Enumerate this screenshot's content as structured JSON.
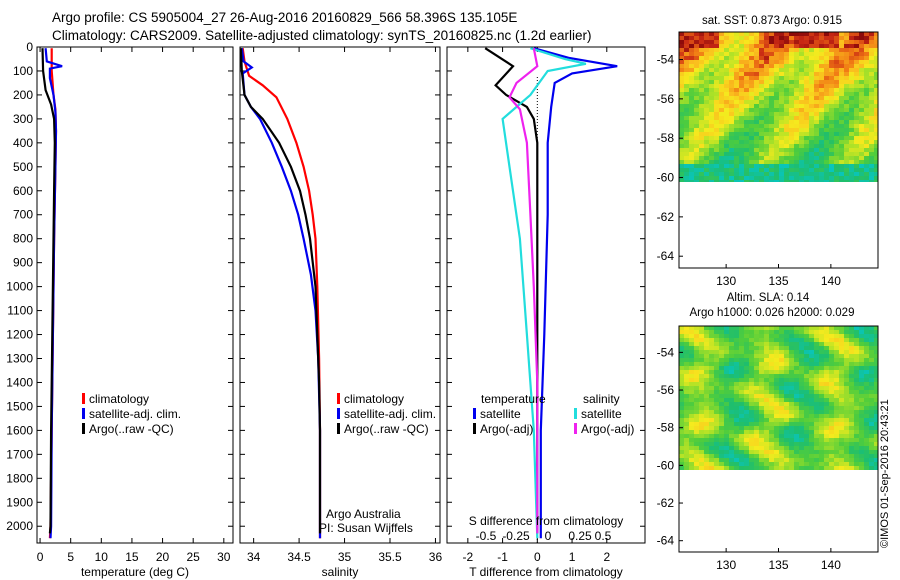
{
  "header": {
    "line1": "Argo profile: CS 5905004_27 26-Aug-2016 20160829_566 58.396S 135.105E",
    "line2": "Climatology: CARS2009. Satellite-adjusted climatology: synTS_20160825.nc (1.2d earlier)"
  },
  "colors": {
    "climatology": "#ff0000",
    "satellite": "#0000ee",
    "argo": "#000000",
    "sat_salinity": "#22dddd",
    "argo_salinity_adj": "#ee22ee"
  },
  "chart_data": [
    {
      "type": "line",
      "name": "temperature-profile",
      "xlabel": "temperature (deg C)",
      "ylabel": "",
      "xlim": [
        -0.5,
        31.5
      ],
      "ylim": [
        2070,
        0
      ],
      "xticks": [
        0,
        5,
        10,
        15,
        20,
        25,
        30
      ],
      "yticks": [
        0,
        100,
        200,
        300,
        400,
        500,
        600,
        700,
        800,
        900,
        1000,
        1100,
        1200,
        1300,
        1400,
        1500,
        1600,
        1700,
        1800,
        1900,
        2000
      ],
      "legend": [
        "climatology",
        "satellite-adj. clim.",
        "Argo(..raw -QC)"
      ],
      "series": [
        {
          "name": "climatology",
          "color": "#ff0000",
          "points": [
            [
              1.9,
              5
            ],
            [
              1.9,
              100
            ],
            [
              2.2,
              200
            ],
            [
              2.5,
              260
            ],
            [
              2.6,
              350
            ],
            [
              2.5,
              500
            ],
            [
              2.3,
              800
            ],
            [
              2.1,
              1200
            ],
            [
              1.9,
              1600
            ],
            [
              1.7,
              2000
            ],
            [
              1.6,
              2050
            ]
          ]
        },
        {
          "name": "satellite-adj. clim.",
          "color": "#0000ee",
          "points": [
            [
              0.9,
              5
            ],
            [
              1.1,
              60
            ],
            [
              3.6,
              80
            ],
            [
              1.6,
              90
            ],
            [
              1.6,
              130
            ],
            [
              2.2,
              200
            ],
            [
              2.5,
              270
            ],
            [
              2.6,
              350
            ],
            [
              2.5,
              500
            ],
            [
              2.3,
              800
            ],
            [
              2.1,
              1200
            ],
            [
              1.9,
              1600
            ],
            [
              1.8,
              2000
            ],
            [
              1.7,
              2050
            ]
          ]
        },
        {
          "name": "Argo(..raw -QC)",
          "color": "#000000",
          "points": [
            [
              0.4,
              5
            ],
            [
              0.5,
              100
            ],
            [
              0.9,
              180
            ],
            [
              1.8,
              240
            ],
            [
              2.3,
              300
            ],
            [
              2.4,
              400
            ],
            [
              2.3,
              600
            ],
            [
              2.2,
              800
            ],
            [
              2.0,
              1200
            ],
            [
              1.8,
              1600
            ],
            [
              1.7,
              2000
            ],
            [
              1.6,
              2030
            ]
          ]
        }
      ]
    },
    {
      "type": "line",
      "name": "salinity-profile",
      "xlabel": "salinity",
      "ylabel": "",
      "xlim": [
        33.85,
        36.05
      ],
      "ylim": [
        2070,
        0
      ],
      "xticks": [
        34,
        34.5,
        35,
        35.5,
        36
      ],
      "legend": [
        "climatology",
        "satellite-adj. clim.",
        "Argo(..raw -QC)"
      ],
      "annotations": [
        "Argo Australia",
        "PI: Susan Wijffels"
      ],
      "series": [
        {
          "name": "climatology",
          "color": "#ff0000",
          "points": [
            [
              33.88,
              5
            ],
            [
              33.9,
              60
            ],
            [
              33.95,
              120
            ],
            [
              34.1,
              160
            ],
            [
              34.25,
              210
            ],
            [
              34.37,
              300
            ],
            [
              34.47,
              400
            ],
            [
              34.55,
              500
            ],
            [
              34.61,
              600
            ],
            [
              34.65,
              700
            ],
            [
              34.68,
              800
            ],
            [
              34.7,
              1000
            ],
            [
              34.72,
              1300
            ],
            [
              34.73,
              1600
            ],
            [
              34.73,
              2050
            ]
          ]
        },
        {
          "name": "satellite-adj. clim.",
          "color": "#0000ee",
          "points": [
            [
              33.87,
              5
            ],
            [
              33.89,
              60
            ],
            [
              33.98,
              85
            ],
            [
              33.88,
              110
            ],
            [
              33.9,
              200
            ],
            [
              33.97,
              250
            ],
            [
              34.07,
              300
            ],
            [
              34.2,
              400
            ],
            [
              34.31,
              500
            ],
            [
              34.41,
              600
            ],
            [
              34.49,
              700
            ],
            [
              34.55,
              800
            ],
            [
              34.63,
              950
            ],
            [
              34.68,
              1100
            ],
            [
              34.71,
              1300
            ],
            [
              34.73,
              1600
            ],
            [
              34.73,
              2050
            ]
          ]
        },
        {
          "name": "Argo(..raw -QC)",
          "color": "#000000",
          "points": [
            [
              33.86,
              5
            ],
            [
              33.87,
              100
            ],
            [
              33.9,
              200
            ],
            [
              33.97,
              250
            ],
            [
              34.1,
              300
            ],
            [
              34.28,
              400
            ],
            [
              34.41,
              500
            ],
            [
              34.51,
              600
            ],
            [
              34.57,
              700
            ],
            [
              34.62,
              800
            ],
            [
              34.68,
              1000
            ],
            [
              34.7,
              1200
            ],
            [
              34.72,
              1400
            ],
            [
              34.73,
              1600
            ],
            [
              34.73,
              2030
            ]
          ]
        }
      ]
    },
    {
      "type": "line",
      "name": "difference-profile",
      "xlabel": "T difference from climatology",
      "top_label": "S difference from climatology",
      "xlim": [
        -2.6,
        3.1
      ],
      "ylim": [
        2070,
        0
      ],
      "xticks": [
        -2,
        -1,
        0,
        1,
        2
      ],
      "top_ticks": [
        "-0.5",
        "-0.25",
        "0",
        "0.25",
        "0.5"
      ],
      "legend_headers": [
        "temperature",
        "salinity"
      ],
      "legend": [
        "satellite",
        "Argo(-adj)",
        "satellite",
        "Argo(-adj)"
      ],
      "series": [
        {
          "name": "temperature satellite",
          "color": "#0000ee",
          "points": [
            [
              -0.1,
              5
            ],
            [
              0.9,
              45
            ],
            [
              2.3,
              80
            ],
            [
              1.0,
              110
            ],
            [
              0.5,
              150
            ],
            [
              0.4,
              250
            ],
            [
              0.3,
              400
            ],
            [
              0.3,
              700
            ],
            [
              0.2,
              1200
            ],
            [
              0.1,
              1600
            ],
            [
              0.1,
              2050
            ]
          ]
        },
        {
          "name": "temperature Argo(-adj)",
          "color": "#000000",
          "points": [
            [
              -1.5,
              5
            ],
            [
              -0.7,
              80
            ],
            [
              -1.2,
              160
            ],
            [
              -0.9,
              200
            ],
            [
              -0.3,
              250
            ],
            [
              -0.1,
              300
            ],
            [
              0,
              400
            ],
            [
              0,
              800
            ],
            [
              0,
              1200
            ],
            [
              0,
              1600
            ],
            [
              0,
              2030
            ]
          ]
        },
        {
          "name": "salinity satellite",
          "color": "#22dddd",
          "points": [
            [
              -0.2,
              5
            ],
            [
              0.8,
              50
            ],
            [
              1.4,
              70
            ],
            [
              0.3,
              100
            ],
            [
              -0.2,
              200
            ],
            [
              -1.0,
              300
            ],
            [
              -0.8,
              500
            ],
            [
              -0.5,
              800
            ],
            [
              -0.3,
              1200
            ],
            [
              -0.1,
              1600
            ],
            [
              0,
              2050
            ]
          ]
        },
        {
          "name": "salinity Argo(-adj)",
          "color": "#ee22ee",
          "points": [
            [
              -0.1,
              5
            ],
            [
              0,
              80
            ],
            [
              -0.6,
              150
            ],
            [
              -0.8,
              210
            ],
            [
              -0.5,
              260
            ],
            [
              -0.3,
              400
            ],
            [
              -0.2,
              700
            ],
            [
              -0.1,
              1000
            ],
            [
              0,
              1400
            ],
            [
              0,
              2030
            ]
          ]
        }
      ]
    },
    {
      "type": "heatmap",
      "name": "sst-map",
      "title": "sat. SST: 0.873 Argo: 0.915",
      "xticks": [
        130,
        135,
        140
      ],
      "yticks": [
        -54,
        -56,
        -58,
        -60,
        -62,
        -64
      ],
      "xlim": [
        125.5,
        144.5
      ],
      "ylim": [
        -64.6,
        -52.6
      ]
    },
    {
      "type": "heatmap",
      "name": "sla-map",
      "title": "Altim. SLA: 0.14",
      "subtitle": "Argo h1000: 0.026 h2000: 0.029",
      "xticks": [
        130,
        135,
        140
      ],
      "yticks": [
        -54,
        -56,
        -58,
        -60,
        -62,
        -64
      ],
      "xlim": [
        125.5,
        144.5
      ],
      "ylim": [
        -64.6,
        -52.6
      ]
    }
  ],
  "footer": {
    "credit": "©IMOS 01-Sep-2016 20:43:21"
  }
}
